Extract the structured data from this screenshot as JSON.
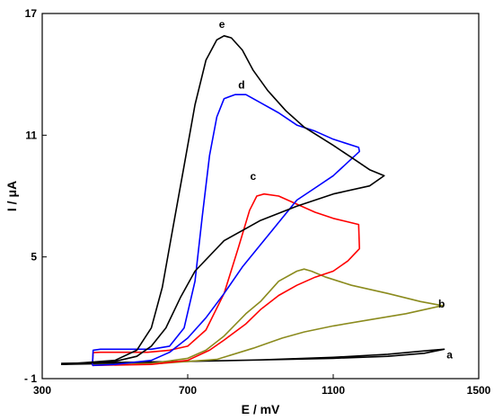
{
  "chart_data": {
    "type": "line",
    "title": "",
    "xlabel": "E / mV",
    "ylabel": "I / μA",
    "xlim": [
      300,
      1500
    ],
    "ylim": [
      -1,
      17
    ],
    "xticks": [
      {
        "value": 300,
        "label": "300"
      },
      {
        "value": 700,
        "label": "700"
      },
      {
        "value": 1100,
        "label": "1100"
      },
      {
        "value": 1500,
        "label": "1500"
      }
    ],
    "yticks": [
      {
        "value": -1,
        "label": "- 1"
      },
      {
        "value": 5,
        "label": "5"
      },
      {
        "value": 11,
        "label": "11"
      },
      {
        "value": 17,
        "label": "17"
      }
    ],
    "grid": false,
    "legend": "none",
    "series": [
      {
        "name": "a",
        "color": "#000000",
        "label_point": [
          1420,
          0.0
        ],
        "points": [
          [
            352,
            -0.25
          ],
          [
            500,
            -0.2
          ],
          [
            700,
            -0.15
          ],
          [
            900,
            -0.08
          ],
          [
            1100,
            0.0
          ],
          [
            1250,
            0.1
          ],
          [
            1350,
            0.25
          ],
          [
            1405,
            0.45
          ],
          [
            1370,
            0.4
          ],
          [
            1250,
            0.2
          ],
          [
            1100,
            0.05
          ],
          [
            900,
            -0.08
          ],
          [
            700,
            -0.15
          ],
          [
            500,
            -0.25
          ],
          [
            352,
            -0.3
          ]
        ]
      },
      {
        "name": "b",
        "color": "#8b8b1e",
        "label_point": [
          1398,
          2.5
        ],
        "points": [
          [
            438,
            -0.32
          ],
          [
            600,
            -0.28
          ],
          [
            780,
            -0.05
          ],
          [
            880,
            0.5
          ],
          [
            960,
            1.0
          ],
          [
            1020,
            1.3
          ],
          [
            1100,
            1.6
          ],
          [
            1200,
            1.9
          ],
          [
            1300,
            2.2
          ],
          [
            1400,
            2.6
          ],
          [
            1340,
            2.8
          ],
          [
            1250,
            3.2
          ],
          [
            1150,
            3.6
          ],
          [
            1080,
            4.0
          ],
          [
            1040,
            4.3
          ],
          [
            1020,
            4.4
          ],
          [
            1000,
            4.3
          ],
          [
            950,
            3.8
          ],
          [
            900,
            2.8
          ],
          [
            860,
            2.2
          ],
          [
            800,
            1.1
          ],
          [
            750,
            0.4
          ],
          [
            700,
            0.0
          ],
          [
            600,
            -0.25
          ],
          [
            438,
            -0.32
          ]
        ]
      },
      {
        "name": "c",
        "color": "#ff0000",
        "label_point": [
          880,
          8.8
        ],
        "points": [
          [
            438,
            -0.35
          ],
          [
            440,
            0.28
          ],
          [
            460,
            0.3
          ],
          [
            520,
            0.3
          ],
          [
            590,
            0.3
          ],
          [
            650,
            0.4
          ],
          [
            700,
            0.6
          ],
          [
            750,
            1.4
          ],
          [
            800,
            3.2
          ],
          [
            840,
            5.5
          ],
          [
            870,
            7.3
          ],
          [
            890,
            8.0
          ],
          [
            910,
            8.1
          ],
          [
            950,
            8.0
          ],
          [
            1000,
            7.6
          ],
          [
            1050,
            7.2
          ],
          [
            1100,
            6.9
          ],
          [
            1170,
            6.6
          ],
          [
            1172,
            5.4
          ],
          [
            1140,
            4.8
          ],
          [
            1100,
            4.3
          ],
          [
            1050,
            4.0
          ],
          [
            1000,
            3.6
          ],
          [
            950,
            3.1
          ],
          [
            900,
            2.4
          ],
          [
            860,
            1.7
          ],
          [
            800,
            0.9
          ],
          [
            760,
            0.4
          ],
          [
            700,
            -0.1
          ],
          [
            600,
            -0.3
          ],
          [
            438,
            -0.35
          ]
        ]
      },
      {
        "name": "d",
        "color": "#0000ff",
        "label_point": [
          848,
          13.3
        ],
        "points": [
          [
            438,
            -0.35
          ],
          [
            440,
            0.4
          ],
          [
            460,
            0.45
          ],
          [
            520,
            0.45
          ],
          [
            600,
            0.45
          ],
          [
            650,
            0.6
          ],
          [
            690,
            1.5
          ],
          [
            720,
            3.8
          ],
          [
            740,
            7.0
          ],
          [
            760,
            10.0
          ],
          [
            780,
            11.9
          ],
          [
            800,
            12.8
          ],
          [
            830,
            13.0
          ],
          [
            860,
            13.0
          ],
          [
            900,
            12.6
          ],
          [
            950,
            12.1
          ],
          [
            1000,
            11.5
          ],
          [
            1050,
            11.2
          ],
          [
            1100,
            10.8
          ],
          [
            1170,
            10.4
          ],
          [
            1172,
            10.2
          ],
          [
            1100,
            9.0
          ],
          [
            1050,
            8.4
          ],
          [
            1000,
            7.8
          ],
          [
            950,
            6.7
          ],
          [
            900,
            5.6
          ],
          [
            850,
            4.5
          ],
          [
            800,
            3.2
          ],
          [
            750,
            2.0
          ],
          [
            720,
            1.4
          ],
          [
            700,
            1.0
          ],
          [
            650,
            0.3
          ],
          [
            600,
            -0.1
          ],
          [
            500,
            -0.3
          ],
          [
            438,
            -0.35
          ]
        ]
      },
      {
        "name": "e",
        "color": "#000000",
        "label_point": [
          794,
          16.3
        ],
        "points": [
          [
            352,
            -0.3
          ],
          [
            500,
            -0.1
          ],
          [
            560,
            0.4
          ],
          [
            600,
            1.5
          ],
          [
            630,
            3.5
          ],
          [
            660,
            6.5
          ],
          [
            690,
            9.5
          ],
          [
            720,
            12.5
          ],
          [
            750,
            14.7
          ],
          [
            780,
            15.7
          ],
          [
            800,
            15.9
          ],
          [
            820,
            15.8
          ],
          [
            850,
            15.2
          ],
          [
            880,
            14.2
          ],
          [
            920,
            13.2
          ],
          [
            970,
            12.2
          ],
          [
            1020,
            11.4
          ],
          [
            1100,
            10.5
          ],
          [
            1150,
            9.9
          ],
          [
            1200,
            9.3
          ],
          [
            1240,
            9.0
          ],
          [
            1200,
            8.5
          ],
          [
            1100,
            8.1
          ],
          [
            1000,
            7.5
          ],
          [
            900,
            6.8
          ],
          [
            800,
            5.8
          ],
          [
            720,
            4.3
          ],
          [
            680,
            3.0
          ],
          [
            640,
            1.5
          ],
          [
            600,
            0.6
          ],
          [
            560,
            0.1
          ],
          [
            500,
            -0.15
          ],
          [
            400,
            -0.25
          ],
          [
            352,
            -0.3
          ]
        ]
      }
    ]
  }
}
